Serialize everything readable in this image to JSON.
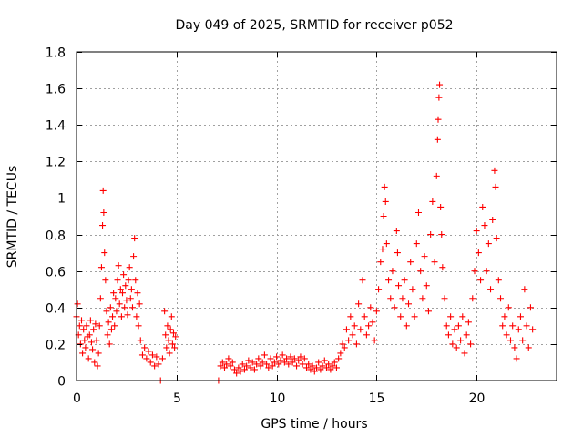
{
  "chart_data": {
    "type": "scatter",
    "title": "Day 049 of 2025, SRMTID for receiver p052",
    "xlabel": "GPS time / hours",
    "ylabel": "SRMTID / TECUs",
    "xlim": [
      0,
      24
    ],
    "ylim": [
      0,
      1.8
    ],
    "xticks": [
      0,
      5,
      10,
      15,
      20
    ],
    "yticks": [
      0,
      0.2,
      0.4,
      0.6,
      0.8,
      1,
      1.2,
      1.4,
      1.6,
      1.8
    ],
    "xtick_labels": [
      "0",
      "5",
      "10",
      "15",
      "20"
    ],
    "ytick_labels": [
      "0",
      "0.2",
      "0.4",
      "0.6",
      "0.8",
      "1",
      "1.2",
      "1.4",
      "1.6",
      "1.8"
    ],
    "grid": true,
    "marker": "plus",
    "color": "#ff0000",
    "series": [
      {
        "name": "SRMTID",
        "points": [
          [
            0.0,
            0.35
          ],
          [
            0.05,
            0.42
          ],
          [
            0.1,
            0.25
          ],
          [
            0.15,
            0.3
          ],
          [
            0.2,
            0.2
          ],
          [
            0.25,
            0.33
          ],
          [
            0.3,
            0.15
          ],
          [
            0.35,
            0.28
          ],
          [
            0.4,
            0.22
          ],
          [
            0.45,
            0.18
          ],
          [
            0.5,
            0.3
          ],
          [
            0.55,
            0.24
          ],
          [
            0.6,
            0.12
          ],
          [
            0.65,
            0.25
          ],
          [
            0.7,
            0.33
          ],
          [
            0.75,
            0.21
          ],
          [
            0.8,
            0.17
          ],
          [
            0.85,
            0.28
          ],
          [
            0.9,
            0.1
          ],
          [
            0.95,
            0.31
          ],
          [
            1.0,
            0.22
          ],
          [
            1.05,
            0.08
          ],
          [
            1.1,
            0.15
          ],
          [
            1.15,
            0.3
          ],
          [
            1.2,
            0.45
          ],
          [
            1.25,
            0.62
          ],
          [
            1.3,
            0.85
          ],
          [
            1.33,
            1.04
          ],
          [
            1.36,
            0.92
          ],
          [
            1.4,
            0.7
          ],
          [
            1.45,
            0.55
          ],
          [
            1.5,
            0.38
          ],
          [
            1.55,
            0.25
          ],
          [
            1.6,
            0.32
          ],
          [
            1.65,
            0.2
          ],
          [
            1.7,
            0.4
          ],
          [
            1.75,
            0.28
          ],
          [
            1.8,
            0.35
          ],
          [
            1.85,
            0.48
          ],
          [
            1.9,
            0.3
          ],
          [
            1.95,
            0.45
          ],
          [
            2.0,
            0.38
          ],
          [
            2.05,
            0.55
          ],
          [
            2.1,
            0.63
          ],
          [
            2.15,
            0.42
          ],
          [
            2.2,
            0.5
          ],
          [
            2.25,
            0.35
          ],
          [
            2.3,
            0.48
          ],
          [
            2.35,
            0.58
          ],
          [
            2.4,
            0.4
          ],
          [
            2.45,
            0.52
          ],
          [
            2.5,
            0.44
          ],
          [
            2.55,
            0.36
          ],
          [
            2.6,
            0.55
          ],
          [
            2.65,
            0.62
          ],
          [
            2.7,
            0.45
          ],
          [
            2.75,
            0.5
          ],
          [
            2.8,
            0.4
          ],
          [
            2.85,
            0.68
          ],
          [
            2.9,
            0.78
          ],
          [
            2.95,
            0.55
          ],
          [
            3.0,
            0.35
          ],
          [
            3.05,
            0.48
          ],
          [
            3.1,
            0.3
          ],
          [
            3.15,
            0.42
          ],
          [
            3.2,
            0.22
          ],
          [
            3.3,
            0.14
          ],
          [
            3.4,
            0.18
          ],
          [
            3.5,
            0.12
          ],
          [
            3.6,
            0.16
          ],
          [
            3.7,
            0.1
          ],
          [
            3.8,
            0.14
          ],
          [
            3.9,
            0.08
          ],
          [
            4.0,
            0.13
          ],
          [
            4.1,
            0.09
          ],
          [
            4.2,
            0.0
          ],
          [
            4.3,
            0.12
          ],
          [
            4.4,
            0.38
          ],
          [
            4.45,
            0.25
          ],
          [
            4.5,
            0.18
          ],
          [
            4.55,
            0.3
          ],
          [
            4.6,
            0.22
          ],
          [
            4.65,
            0.15
          ],
          [
            4.7,
            0.28
          ],
          [
            4.75,
            0.35
          ],
          [
            4.8,
            0.2
          ],
          [
            4.85,
            0.26
          ],
          [
            4.9,
            0.18
          ],
          [
            4.95,
            0.24
          ],
          [
            7.1,
            0.0
          ],
          [
            7.2,
            0.08
          ],
          [
            7.3,
            0.1
          ],
          [
            7.4,
            0.07
          ],
          [
            7.5,
            0.09
          ],
          [
            7.6,
            0.12
          ],
          [
            7.7,
            0.08
          ],
          [
            7.8,
            0.1
          ],
          [
            7.9,
            0.06
          ],
          [
            8.0,
            0.04
          ],
          [
            8.1,
            0.07
          ],
          [
            8.2,
            0.05
          ],
          [
            8.3,
            0.09
          ],
          [
            8.4,
            0.06
          ],
          [
            8.5,
            0.08
          ],
          [
            8.6,
            0.11
          ],
          [
            8.7,
            0.07
          ],
          [
            8.8,
            0.1
          ],
          [
            8.9,
            0.06
          ],
          [
            9.0,
            0.09
          ],
          [
            9.1,
            0.12
          ],
          [
            9.2,
            0.08
          ],
          [
            9.3,
            0.1
          ],
          [
            9.4,
            0.14
          ],
          [
            9.5,
            0.09
          ],
          [
            9.6,
            0.07
          ],
          [
            9.7,
            0.12
          ],
          [
            9.8,
            0.08
          ],
          [
            9.9,
            0.1
          ],
          [
            10.0,
            0.13
          ],
          [
            10.1,
            0.09
          ],
          [
            10.2,
            0.11
          ],
          [
            10.3,
            0.14
          ],
          [
            10.4,
            0.1
          ],
          [
            10.5,
            0.12
          ],
          [
            10.6,
            0.09
          ],
          [
            10.7,
            0.13
          ],
          [
            10.8,
            0.1
          ],
          [
            10.9,
            0.12
          ],
          [
            11.0,
            0.08
          ],
          [
            11.1,
            0.11
          ],
          [
            11.2,
            0.13
          ],
          [
            11.3,
            0.09
          ],
          [
            11.4,
            0.12
          ],
          [
            11.5,
            0.07
          ],
          [
            11.6,
            0.09
          ],
          [
            11.7,
            0.06
          ],
          [
            11.8,
            0.08
          ],
          [
            11.9,
            0.05
          ],
          [
            12.0,
            0.07
          ],
          [
            12.1,
            0.1
          ],
          [
            12.2,
            0.06
          ],
          [
            12.3,
            0.08
          ],
          [
            12.4,
            0.11
          ],
          [
            12.5,
            0.07
          ],
          [
            12.6,
            0.09
          ],
          [
            12.7,
            0.06
          ],
          [
            12.8,
            0.08
          ],
          [
            12.9,
            0.1
          ],
          [
            13.0,
            0.07
          ],
          [
            13.1,
            0.12
          ],
          [
            13.2,
            0.15
          ],
          [
            13.3,
            0.2
          ],
          [
            13.4,
            0.18
          ],
          [
            13.5,
            0.28
          ],
          [
            13.6,
            0.22
          ],
          [
            13.7,
            0.35
          ],
          [
            13.8,
            0.25
          ],
          [
            13.9,
            0.3
          ],
          [
            14.0,
            0.2
          ],
          [
            14.1,
            0.42
          ],
          [
            14.2,
            0.28
          ],
          [
            14.3,
            0.55
          ],
          [
            14.4,
            0.35
          ],
          [
            14.5,
            0.25
          ],
          [
            14.6,
            0.3
          ],
          [
            14.7,
            0.4
          ],
          [
            14.8,
            0.32
          ],
          [
            14.9,
            0.22
          ],
          [
            15.0,
            0.38
          ],
          [
            15.1,
            0.5
          ],
          [
            15.2,
            0.65
          ],
          [
            15.3,
            0.72
          ],
          [
            15.35,
            0.9
          ],
          [
            15.4,
            1.06
          ],
          [
            15.45,
            0.98
          ],
          [
            15.5,
            0.75
          ],
          [
            15.6,
            0.55
          ],
          [
            15.7,
            0.45
          ],
          [
            15.8,
            0.6
          ],
          [
            15.9,
            0.4
          ],
          [
            16.0,
            0.82
          ],
          [
            16.05,
            0.7
          ],
          [
            16.1,
            0.52
          ],
          [
            16.2,
            0.35
          ],
          [
            16.3,
            0.45
          ],
          [
            16.4,
            0.55
          ],
          [
            16.5,
            0.3
          ],
          [
            16.6,
            0.42
          ],
          [
            16.7,
            0.65
          ],
          [
            16.8,
            0.5
          ],
          [
            16.9,
            0.35
          ],
          [
            17.0,
            0.75
          ],
          [
            17.1,
            0.92
          ],
          [
            17.2,
            0.6
          ],
          [
            17.3,
            0.45
          ],
          [
            17.4,
            0.68
          ],
          [
            17.5,
            0.52
          ],
          [
            17.6,
            0.38
          ],
          [
            17.7,
            0.8
          ],
          [
            17.8,
            0.98
          ],
          [
            17.9,
            0.65
          ],
          [
            18.0,
            1.12
          ],
          [
            18.05,
            1.32
          ],
          [
            18.08,
            1.43
          ],
          [
            18.12,
            1.55
          ],
          [
            18.15,
            1.62
          ],
          [
            18.2,
            0.95
          ],
          [
            18.25,
            0.8
          ],
          [
            18.3,
            0.62
          ],
          [
            18.4,
            0.45
          ],
          [
            18.5,
            0.3
          ],
          [
            18.6,
            0.25
          ],
          [
            18.7,
            0.35
          ],
          [
            18.8,
            0.2
          ],
          [
            18.9,
            0.28
          ],
          [
            19.0,
            0.18
          ],
          [
            19.1,
            0.3
          ],
          [
            19.2,
            0.22
          ],
          [
            19.3,
            0.35
          ],
          [
            19.4,
            0.15
          ],
          [
            19.5,
            0.25
          ],
          [
            19.6,
            0.32
          ],
          [
            19.7,
            0.2
          ],
          [
            19.8,
            0.45
          ],
          [
            19.9,
            0.6
          ],
          [
            20.0,
            0.82
          ],
          [
            20.1,
            0.7
          ],
          [
            20.2,
            0.55
          ],
          [
            20.3,
            0.95
          ],
          [
            20.4,
            0.85
          ],
          [
            20.5,
            0.6
          ],
          [
            20.6,
            0.75
          ],
          [
            20.7,
            0.5
          ],
          [
            20.8,
            0.88
          ],
          [
            20.9,
            1.15
          ],
          [
            20.95,
            1.06
          ],
          [
            21.0,
            0.78
          ],
          [
            21.1,
            0.55
          ],
          [
            21.2,
            0.45
          ],
          [
            21.3,
            0.3
          ],
          [
            21.4,
            0.35
          ],
          [
            21.5,
            0.25
          ],
          [
            21.6,
            0.4
          ],
          [
            21.7,
            0.22
          ],
          [
            21.8,
            0.3
          ],
          [
            21.9,
            0.18
          ],
          [
            22.0,
            0.12
          ],
          [
            22.1,
            0.28
          ],
          [
            22.2,
            0.35
          ],
          [
            22.3,
            0.22
          ],
          [
            22.4,
            0.5
          ],
          [
            22.5,
            0.3
          ],
          [
            22.6,
            0.18
          ],
          [
            22.7,
            0.4
          ],
          [
            22.8,
            0.28
          ]
        ]
      }
    ]
  }
}
